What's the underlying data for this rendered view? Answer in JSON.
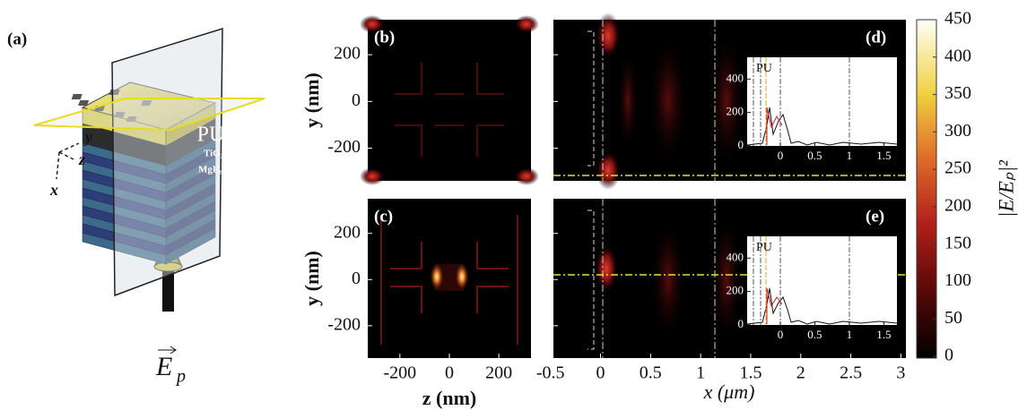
{
  "panel_labels": [
    "(a)",
    "(b)",
    "(c)",
    "(d)",
    "(e)"
  ],
  "schematic": {
    "layers": [
      "PU",
      "TiO₂",
      "MgF₂"
    ],
    "axes": [
      "y",
      "z",
      "x"
    ],
    "field": {
      "symbol": "E",
      "subscript": "p"
    }
  },
  "maps": {
    "y_label": "y (nm)",
    "z_label": "z (nm)",
    "x_label": "x (μm)",
    "y_ticks": [
      200,
      0,
      -200
    ],
    "y_range": [
      -340,
      350
    ],
    "z_ticks": [
      -200,
      0,
      200
    ],
    "z_range": [
      -330,
      330
    ],
    "x_ticks": [
      -0.5,
      0,
      0.5,
      1,
      1.5,
      2,
      2.5,
      3
    ],
    "x_range": [
      -0.47,
      3.05
    ]
  },
  "inset": {
    "label": "PU",
    "y_ticks": [
      0,
      200,
      400
    ],
    "y_range": [
      0,
      530
    ],
    "x_ticks": [
      0,
      0.5,
      1,
      1.5
    ],
    "x_range": [
      -0.48,
      1.69
    ]
  },
  "colorbar": {
    "label": "|E/Eₚ|²",
    "ticks": [
      0,
      50,
      100,
      150,
      200,
      250,
      300,
      350,
      400,
      450
    ],
    "range": [
      0,
      450
    ]
  }
}
